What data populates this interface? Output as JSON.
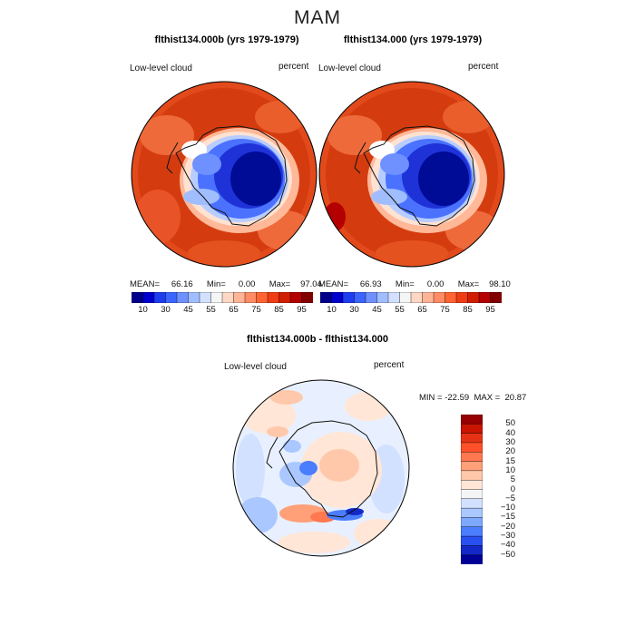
{
  "season": "MAM",
  "plot_left": {
    "title": "flthist134.000b (yrs 1979-1979)",
    "variable": "Low-level cloud",
    "units": "percent",
    "mean_label": "MEAN=",
    "mean": "66.16",
    "min_label": "Min=",
    "min": "0.00",
    "max_label": "Max=",
    "max": "97.04"
  },
  "plot_right": {
    "title": "flthist134.000 (yrs 1979-1979)",
    "variable": "Low-level cloud",
    "units": "percent",
    "mean_label": "MEAN=",
    "mean": "66.93",
    "min_label": "Min=",
    "min": "0.00",
    "max_label": "Max=",
    "max": "98.10"
  },
  "plot_diff": {
    "title": "flthist134.000b - flthist134.000",
    "variable": "Low-level cloud",
    "units": "percent",
    "minmax_text": "MIN = -22.59  MAX =  20.87"
  },
  "colorbar_top": {
    "labels": [
      "10",
      "30",
      "45",
      "55",
      "65",
      "75",
      "85",
      "95"
    ],
    "colors": [
      "#00008b",
      "#0000cd",
      "#1e3cf0",
      "#3c64ff",
      "#6e91ff",
      "#a0beff",
      "#d2e1ff",
      "#f5f5f5",
      "#ffd7c3",
      "#ffb496",
      "#ff8c64",
      "#ff6432",
      "#f03c14",
      "#d21e00",
      "#b40000",
      "#820000"
    ]
  },
  "colorbar_diff": {
    "labels": [
      "50",
      "40",
      "30",
      "20",
      "15",
      "10",
      "5",
      "0",
      "−5",
      "−10",
      "−15",
      "−20",
      "−30",
      "−40",
      "−50"
    ],
    "colors": [
      "#960000",
      "#c81400",
      "#e63214",
      "#ff5028",
      "#ff7850",
      "#ffa078",
      "#ffc8aa",
      "#ffe6d7",
      "#f5f5f5",
      "#d2e1ff",
      "#aac8ff",
      "#7ea8ff",
      "#4b7dff",
      "#2850f0",
      "#1428c8",
      "#000096"
    ]
  }
}
